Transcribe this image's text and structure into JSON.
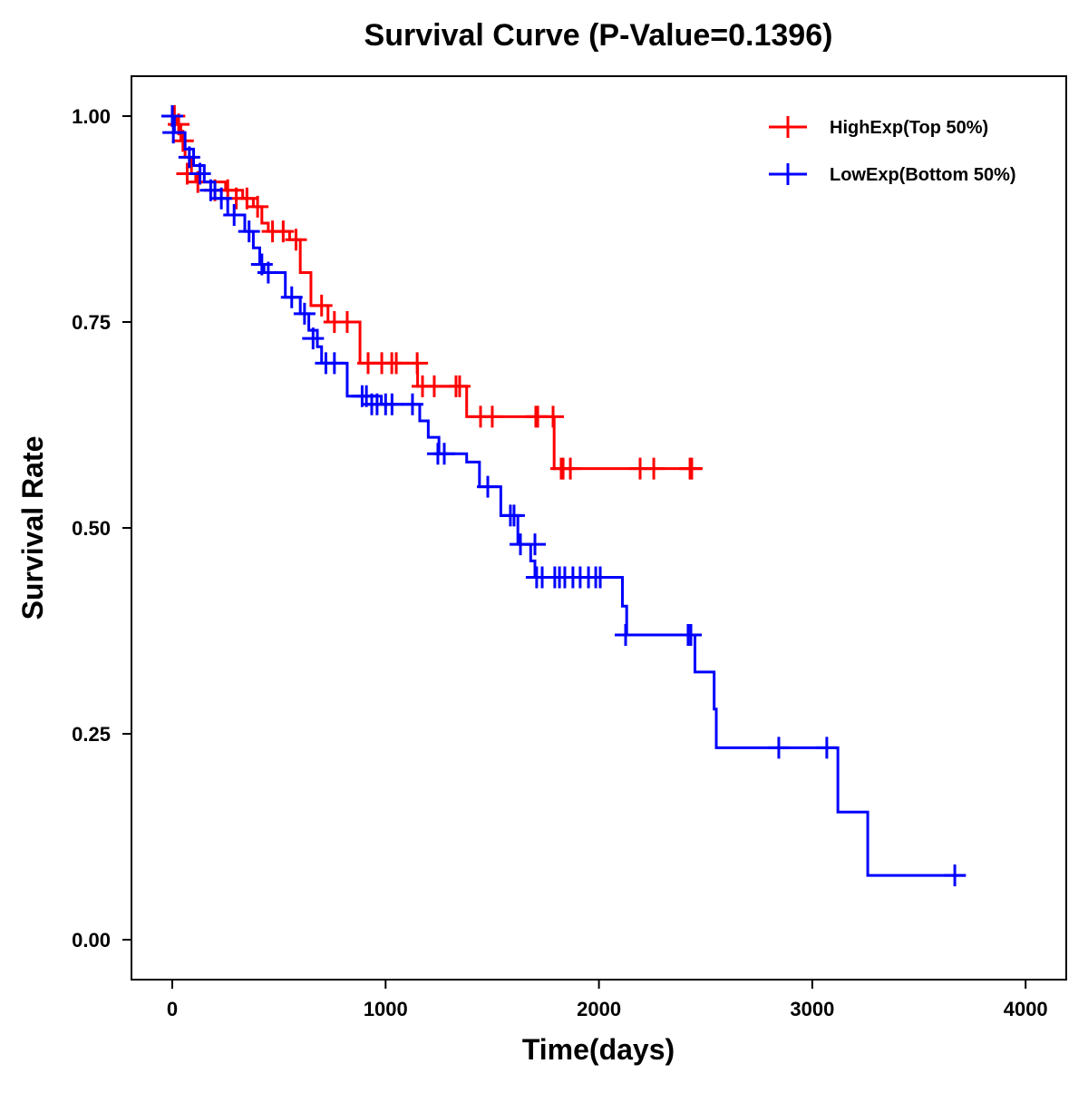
{
  "chart_data": {
    "type": "line",
    "subtype": "kaplan-meier",
    "title": "Survival Curve (P-Value=0.1396)",
    "xlabel": "Time(days)",
    "ylabel": "Survival Rate",
    "xlim": [
      -200,
      4200
    ],
    "ylim": [
      -0.05,
      1.05
    ],
    "xticks": [
      0,
      1000,
      2000,
      3000,
      4000
    ],
    "xtick_labels": [
      "0",
      "1000",
      "2000",
      "3000",
      "4000"
    ],
    "yticks": [
      0,
      0.25,
      0.5,
      0.75,
      1.0
    ],
    "ytick_labels": [
      "0.00",
      "0.25",
      "0.50",
      "0.75",
      "1.00"
    ],
    "grid": false,
    "legend_position": "top-right",
    "series": [
      {
        "name": "HighExp(Top 50%)",
        "color": "#ff0000",
        "steps": [
          [
            0,
            1.0
          ],
          [
            20,
            0.99
          ],
          [
            40,
            0.97
          ],
          [
            60,
            0.95
          ],
          [
            90,
            0.93
          ],
          [
            110,
            0.92
          ],
          [
            250,
            0.91
          ],
          [
            330,
            0.9
          ],
          [
            380,
            0.89
          ],
          [
            420,
            0.87
          ],
          [
            450,
            0.86
          ],
          [
            550,
            0.85
          ],
          [
            600,
            0.81
          ],
          [
            650,
            0.77
          ],
          [
            730,
            0.75
          ],
          [
            880,
            0.7
          ],
          [
            1150,
            0.672
          ],
          [
            1380,
            0.635
          ],
          [
            1790,
            0.572
          ]
        ],
        "end_time": 2480,
        "censored": [
          [
            10,
            1.0
          ],
          [
            30,
            0.99
          ],
          [
            50,
            0.97
          ],
          [
            70,
            0.93
          ],
          [
            120,
            0.92
          ],
          [
            200,
            0.91
          ],
          [
            260,
            0.91
          ],
          [
            300,
            0.9
          ],
          [
            350,
            0.9
          ],
          [
            400,
            0.89
          ],
          [
            470,
            0.86
          ],
          [
            520,
            0.86
          ],
          [
            580,
            0.85
          ],
          [
            700,
            0.77
          ],
          [
            760,
            0.75
          ],
          [
            820,
            0.75
          ],
          [
            918,
            0.7
          ],
          [
            982,
            0.7
          ],
          [
            1029,
            0.7
          ],
          [
            1050,
            0.7
          ],
          [
            1148,
            0.7
          ],
          [
            1173,
            0.672
          ],
          [
            1228,
            0.672
          ],
          [
            1330,
            0.672
          ],
          [
            1347,
            0.672
          ],
          [
            1445,
            0.635
          ],
          [
            1500,
            0.635
          ],
          [
            1704,
            0.635
          ],
          [
            1713,
            0.635
          ],
          [
            1785,
            0.635
          ],
          [
            1823,
            0.572
          ],
          [
            1832,
            0.572
          ],
          [
            1866,
            0.572
          ],
          [
            2193,
            0.572
          ],
          [
            2257,
            0.572
          ],
          [
            2427,
            0.572
          ],
          [
            2435,
            0.572
          ]
        ]
      },
      {
        "name": "LowExp(Bottom 50%)",
        "color": "#0000ff",
        "steps": [
          [
            0,
            1.0
          ],
          [
            10,
            0.98
          ],
          [
            60,
            0.96
          ],
          [
            100,
            0.94
          ],
          [
            150,
            0.92
          ],
          [
            200,
            0.9
          ],
          [
            260,
            0.88
          ],
          [
            340,
            0.86
          ],
          [
            380,
            0.84
          ],
          [
            410,
            0.82
          ],
          [
            430,
            0.81
          ],
          [
            530,
            0.78
          ],
          [
            600,
            0.76
          ],
          [
            640,
            0.74
          ],
          [
            680,
            0.72
          ],
          [
            700,
            0.7
          ],
          [
            820,
            0.66
          ],
          [
            980,
            0.65
          ],
          [
            1160,
            0.63
          ],
          [
            1200,
            0.61
          ],
          [
            1250,
            0.59
          ],
          [
            1380,
            0.58
          ],
          [
            1440,
            0.55
          ],
          [
            1540,
            0.515
          ],
          [
            1620,
            0.48
          ],
          [
            1680,
            0.46
          ],
          [
            1700,
            0.44
          ],
          [
            2110,
            0.405
          ],
          [
            2130,
            0.37
          ],
          [
            2450,
            0.325
          ],
          [
            2540,
            0.28
          ],
          [
            2550,
            0.233
          ],
          [
            3120,
            0.155
          ],
          [
            3260,
            0.078
          ]
        ],
        "end_time": 3720,
        "censored": [
          [
            0,
            1.0
          ],
          [
            5,
            0.98
          ],
          [
            80,
            0.95
          ],
          [
            130,
            0.93
          ],
          [
            180,
            0.91
          ],
          [
            230,
            0.9
          ],
          [
            290,
            0.88
          ],
          [
            360,
            0.86
          ],
          [
            420,
            0.82
          ],
          [
            450,
            0.81
          ],
          [
            560,
            0.78
          ],
          [
            620,
            0.76
          ],
          [
            660,
            0.73
          ],
          [
            720,
            0.7
          ],
          [
            760,
            0.7
          ],
          [
            890,
            0.66
          ],
          [
            910,
            0.66
          ],
          [
            935,
            0.65
          ],
          [
            960,
            0.65
          ],
          [
            1000,
            0.65
          ],
          [
            1030,
            0.65
          ],
          [
            1126,
            0.65
          ],
          [
            1245,
            0.59
          ],
          [
            1275,
            0.59
          ],
          [
            1479,
            0.55
          ],
          [
            1585,
            0.515
          ],
          [
            1602,
            0.515
          ],
          [
            1632,
            0.48
          ],
          [
            1700,
            0.48
          ],
          [
            1708,
            0.44
          ],
          [
            1734,
            0.44
          ],
          [
            1793,
            0.44
          ],
          [
            1815,
            0.44
          ],
          [
            1840,
            0.44
          ],
          [
            1878,
            0.44
          ],
          [
            1912,
            0.44
          ],
          [
            1951,
            0.44
          ],
          [
            1985,
            0.44
          ],
          [
            2006,
            0.44
          ],
          [
            2125,
            0.37
          ],
          [
            2418,
            0.37
          ],
          [
            2431,
            0.37
          ],
          [
            2843,
            0.233
          ],
          [
            3068,
            0.233
          ],
          [
            3668,
            0.078
          ]
        ]
      }
    ]
  }
}
